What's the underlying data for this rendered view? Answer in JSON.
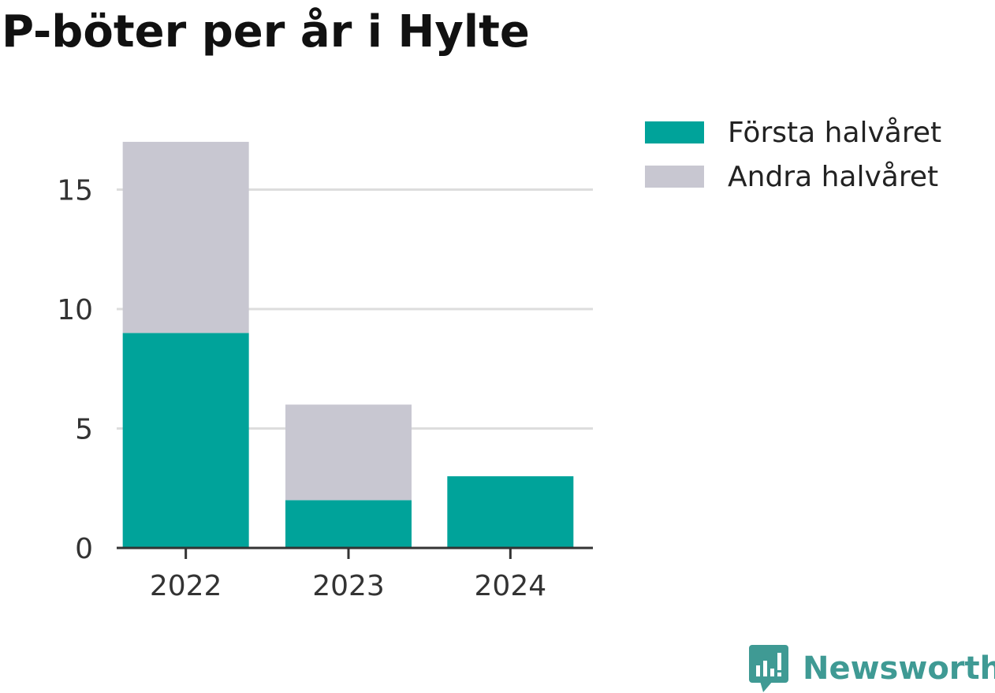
{
  "title": "P-böter per år i Hylte",
  "brand": "Newsworthy",
  "colors": {
    "first_half": "#00a39a",
    "second_half": "#c8c7d1",
    "grid": "#dddddd",
    "axis": "#333333",
    "brand": "#3f9a94"
  },
  "icons": {
    "brand": "newsworthy-logo-icon"
  },
  "legend": {
    "items": [
      {
        "label": "Första halvåret"
      },
      {
        "label": "Andra halvåret"
      }
    ]
  },
  "chart_data": {
    "type": "bar",
    "stacked": true,
    "title": "P-böter per år i Hylte",
    "xlabel": "",
    "ylabel": "",
    "categories": [
      "2022",
      "2023",
      "2024"
    ],
    "series": [
      {
        "name": "Första halvåret",
        "values": [
          9,
          2,
          3
        ]
      },
      {
        "name": "Andra halvåret",
        "values": [
          8,
          4,
          0
        ]
      }
    ],
    "yticks": [
      0,
      5,
      10,
      15
    ],
    "ylim": [
      0,
      17
    ],
    "grid": true,
    "legend_position": "right"
  }
}
